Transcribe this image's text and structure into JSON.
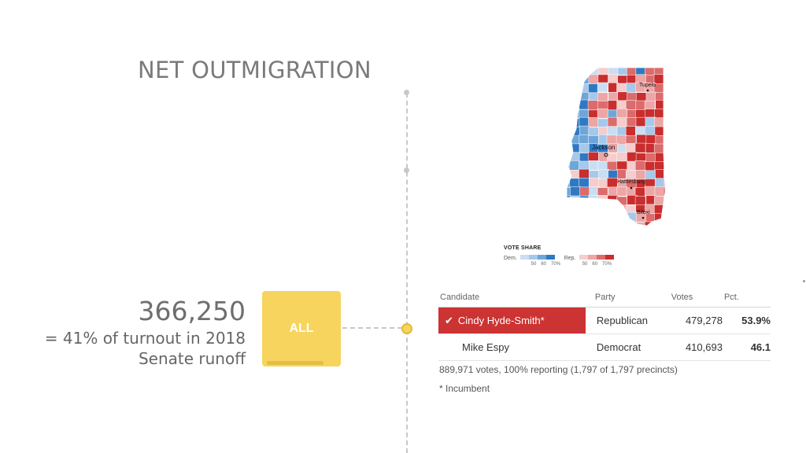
{
  "title": "NET OUTMIGRATION",
  "stat": {
    "number": "366,250",
    "line1": "= 41% of turnout in 2018",
    "line2": "Senate runoff"
  },
  "filter_button": {
    "label": "ALL"
  },
  "map": {
    "cities": [
      "Tupelo",
      "Jackson",
      "Hattiesburg",
      "Biloxi"
    ]
  },
  "legend": {
    "title": "VOTE SHARE",
    "dem_label": "Dem.",
    "rep_label": "Rep.",
    "ticks": [
      "50",
      "60",
      "70%"
    ],
    "dem_colors": [
      "#c9def2",
      "#a6c8ea",
      "#6fa6d8",
      "#2f79c4"
    ],
    "rep_colors": [
      "#f6cccc",
      "#eda5a5",
      "#dc6b6b",
      "#c92d2d"
    ]
  },
  "results": {
    "headers": {
      "candidate": "Candidate",
      "party": "Party",
      "votes": "Votes",
      "pct": "Pct."
    },
    "rows": [
      {
        "candidate": "Cindy Hyde-Smith*",
        "party": "Republican",
        "votes": "479,278",
        "pct": "53.9%",
        "winner": true
      },
      {
        "candidate": "Mike Espy",
        "party": "Democrat",
        "votes": "410,693",
        "pct": "46.1",
        "winner": false
      }
    ],
    "footnote": "889,971 votes, 100% reporting (1,797 of 1,797 precincts)",
    "incumbent_note": "* Incumbent"
  }
}
